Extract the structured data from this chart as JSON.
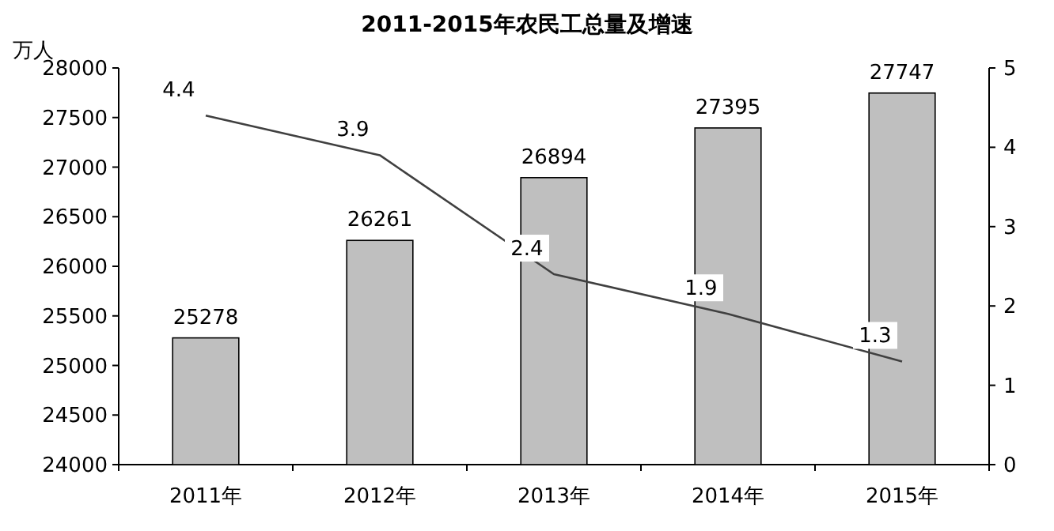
{
  "chart_data": {
    "type": "bar",
    "title": "2011-2015年农民工总量及增速",
    "ylabel": "万人",
    "categories": [
      "2011年",
      "2012年",
      "2013年",
      "2014年",
      "2015年"
    ],
    "series": [
      {
        "color": "#bfbfbf",
        "values": [
          25278,
          26261,
          26894,
          27395,
          27747
        ]
      },
      {
        "type": "line",
        "axis": "y2",
        "color": "#404040",
        "values": [
          4.4,
          3.9,
          2.4,
          1.9,
          1.3
        ]
      }
    ],
    "ylim": [
      24000,
      28000
    ],
    "yticks": [
      24000,
      24500,
      25000,
      25500,
      26000,
      26500,
      27000,
      27500,
      28000
    ],
    "y2lim": [
      0,
      5
    ],
    "y2ticks": [
      0,
      1,
      2,
      3,
      4,
      5
    ],
    "data_labels": true,
    "grid": false
  }
}
